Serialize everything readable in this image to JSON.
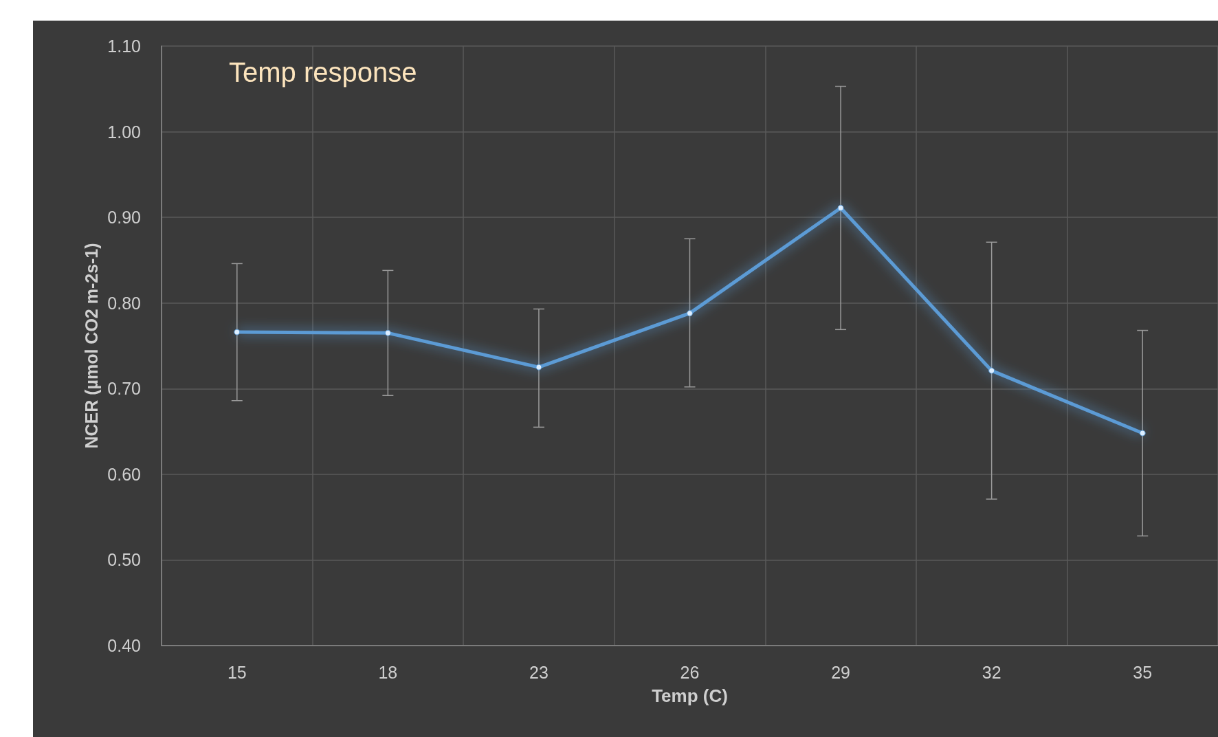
{
  "chart_data": {
    "type": "line",
    "title": "Temp response",
    "xlabel": "Temp (C)",
    "ylabel": "NCER (µmol CO2 m-2s-1)",
    "categories": [
      "15",
      "18",
      "23",
      "26",
      "29",
      "32",
      "35"
    ],
    "series": [
      {
        "color": "#5b9bd5",
        "values": [
          0.766,
          0.765,
          0.725,
          0.788,
          0.911,
          0.721,
          0.648
        ],
        "errors": [
          [
            0.686,
            0.846
          ],
          [
            0.692,
            0.838
          ],
          [
            0.655,
            0.793
          ],
          [
            0.702,
            0.875
          ],
          [
            0.769,
            1.053
          ],
          [
            0.571,
            0.871
          ],
          [
            0.528,
            0.768
          ]
        ]
      }
    ],
    "ylim": [
      0.4,
      1.1
    ],
    "yticks": [
      {
        "value": 0.4,
        "label": "0.40"
      },
      {
        "value": 0.5,
        "label": "0.50"
      },
      {
        "value": 0.6,
        "label": "0.60"
      },
      {
        "value": 0.7,
        "label": "0.70"
      },
      {
        "value": 0.8,
        "label": "0.80"
      },
      {
        "value": 0.9,
        "label": "0.90"
      },
      {
        "value": 1.0,
        "label": "1.00"
      },
      {
        "value": 1.1,
        "label": "1.10"
      }
    ],
    "grid": true,
    "marker": "circle",
    "line_style": "solid"
  }
}
